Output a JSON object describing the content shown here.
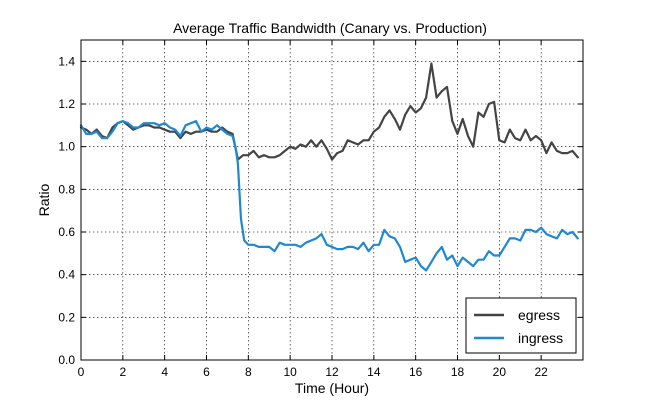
{
  "chart_data": {
    "type": "line",
    "title": "Average Traffic Bandwidth (Canary vs. Production)",
    "xlabel": "Time (Hour)",
    "ylabel": "Ratio",
    "xlim": [
      0,
      24
    ],
    "ylim": [
      0.0,
      1.5
    ],
    "xticks": [
      0,
      2,
      4,
      6,
      8,
      10,
      12,
      14,
      16,
      18,
      20,
      22
    ],
    "xtick_labels": [
      "0",
      "2",
      "4",
      "6",
      "8",
      "10",
      "12",
      "14",
      "16",
      "18",
      "20",
      "22"
    ],
    "yticks": [
      0.0,
      0.2,
      0.4,
      0.6,
      0.8,
      1.0,
      1.2,
      1.4
    ],
    "ytick_labels": [
      "0.0",
      "0.2",
      "0.4",
      "0.6",
      "0.8",
      "1.0",
      "1.2",
      "1.4"
    ],
    "grid": true,
    "legend_position": "bottom-right",
    "series": [
      {
        "name": "egress",
        "color": "#444444",
        "x": [
          0,
          0.25,
          0.5,
          0.75,
          1,
          1.25,
          1.5,
          1.75,
          2,
          2.25,
          2.5,
          2.75,
          3,
          3.25,
          3.5,
          3.75,
          4,
          4.25,
          4.5,
          4.75,
          5,
          5.25,
          5.5,
          5.75,
          6,
          6.25,
          6.5,
          6.75,
          7,
          7.25,
          7.5,
          7.75,
          8,
          8.25,
          8.5,
          8.75,
          9,
          9.25,
          9.5,
          9.75,
          10,
          10.25,
          10.5,
          10.75,
          11,
          11.25,
          11.5,
          11.75,
          12,
          12.25,
          12.5,
          12.75,
          13,
          13.25,
          13.5,
          13.75,
          14,
          14.25,
          14.5,
          14.75,
          15,
          15.25,
          15.5,
          15.75,
          16,
          16.25,
          16.5,
          16.75,
          17,
          17.25,
          17.5,
          17.75,
          18,
          18.25,
          18.5,
          18.75,
          19,
          19.25,
          19.5,
          19.75,
          20,
          20.25,
          20.5,
          20.75,
          21,
          21.25,
          21.5,
          21.75,
          22,
          22.25,
          22.5,
          22.75,
          23,
          23.25,
          23.5,
          23.75
        ],
        "values": [
          1.09,
          1.08,
          1.06,
          1.08,
          1.05,
          1.04,
          1.09,
          1.11,
          1.12,
          1.1,
          1.08,
          1.09,
          1.1,
          1.1,
          1.09,
          1.09,
          1.08,
          1.07,
          1.07,
          1.04,
          1.07,
          1.06,
          1.07,
          1.07,
          1.08,
          1.07,
          1.07,
          1.09,
          1.07,
          1.06,
          0.94,
          0.96,
          0.96,
          0.98,
          0.95,
          0.96,
          0.95,
          0.95,
          0.96,
          0.98,
          1.0,
          0.99,
          1.01,
          1.0,
          1.03,
          1.0,
          1.03,
          0.99,
          0.94,
          0.97,
          0.98,
          1.03,
          1.02,
          1.01,
          1.03,
          1.03,
          1.07,
          1.09,
          1.14,
          1.17,
          1.13,
          1.08,
          1.15,
          1.19,
          1.16,
          1.18,
          1.23,
          1.39,
          1.23,
          1.26,
          1.28,
          1.12,
          1.06,
          1.13,
          1.05,
          1.0,
          1.16,
          1.14,
          1.2,
          1.21,
          1.03,
          1.02,
          1.08,
          1.04,
          1.03,
          1.08,
          1.03,
          1.05,
          1.03,
          0.97,
          1.02,
          0.98,
          0.97,
          0.97,
          0.98,
          0.95
        ],
        "label": "egress"
      },
      {
        "name": "ingress",
        "color": "#1f88d0",
        "x": [
          0,
          0.25,
          0.5,
          0.75,
          1,
          1.25,
          1.5,
          1.75,
          2,
          2.25,
          2.5,
          2.75,
          3,
          3.25,
          3.5,
          3.75,
          4,
          4.25,
          4.5,
          4.75,
          5,
          5.25,
          5.5,
          5.75,
          6,
          6.25,
          6.5,
          6.75,
          7,
          7.25,
          7.4,
          7.5,
          7.65,
          7.8,
          8,
          8.25,
          8.5,
          8.75,
          9,
          9.25,
          9.5,
          9.75,
          10,
          10.25,
          10.5,
          10.75,
          11,
          11.25,
          11.5,
          11.75,
          12,
          12.25,
          12.5,
          12.75,
          13,
          13.25,
          13.5,
          13.75,
          14,
          14.25,
          14.5,
          14.75,
          15,
          15.25,
          15.5,
          15.75,
          16,
          16.25,
          16.5,
          16.75,
          17,
          17.25,
          17.5,
          17.75,
          18,
          18.25,
          18.5,
          18.75,
          19,
          19.25,
          19.5,
          19.75,
          20,
          20.25,
          20.5,
          20.75,
          21,
          21.25,
          21.5,
          21.75,
          22,
          22.25,
          22.5,
          22.75,
          23,
          23.25,
          23.5,
          23.75
        ],
        "values": [
          1.1,
          1.06,
          1.06,
          1.07,
          1.04,
          1.04,
          1.07,
          1.11,
          1.12,
          1.11,
          1.09,
          1.09,
          1.11,
          1.11,
          1.11,
          1.1,
          1.11,
          1.09,
          1.08,
          1.05,
          1.1,
          1.11,
          1.12,
          1.07,
          1.09,
          1.08,
          1.1,
          1.08,
          1.06,
          1.05,
          0.99,
          0.92,
          0.66,
          0.56,
          0.54,
          0.54,
          0.53,
          0.53,
          0.53,
          0.51,
          0.55,
          0.54,
          0.54,
          0.54,
          0.53,
          0.55,
          0.56,
          0.57,
          0.59,
          0.54,
          0.53,
          0.52,
          0.52,
          0.53,
          0.53,
          0.52,
          0.55,
          0.51,
          0.54,
          0.54,
          0.61,
          0.58,
          0.57,
          0.53,
          0.46,
          0.47,
          0.48,
          0.44,
          0.42,
          0.46,
          0.5,
          0.53,
          0.47,
          0.49,
          0.44,
          0.48,
          0.46,
          0.44,
          0.47,
          0.47,
          0.51,
          0.49,
          0.49,
          0.53,
          0.57,
          0.57,
          0.56,
          0.61,
          0.61,
          0.6,
          0.62,
          0.59,
          0.58,
          0.57,
          0.61,
          0.59,
          0.6,
          0.57
        ],
        "label": "ingress"
      }
    ]
  }
}
